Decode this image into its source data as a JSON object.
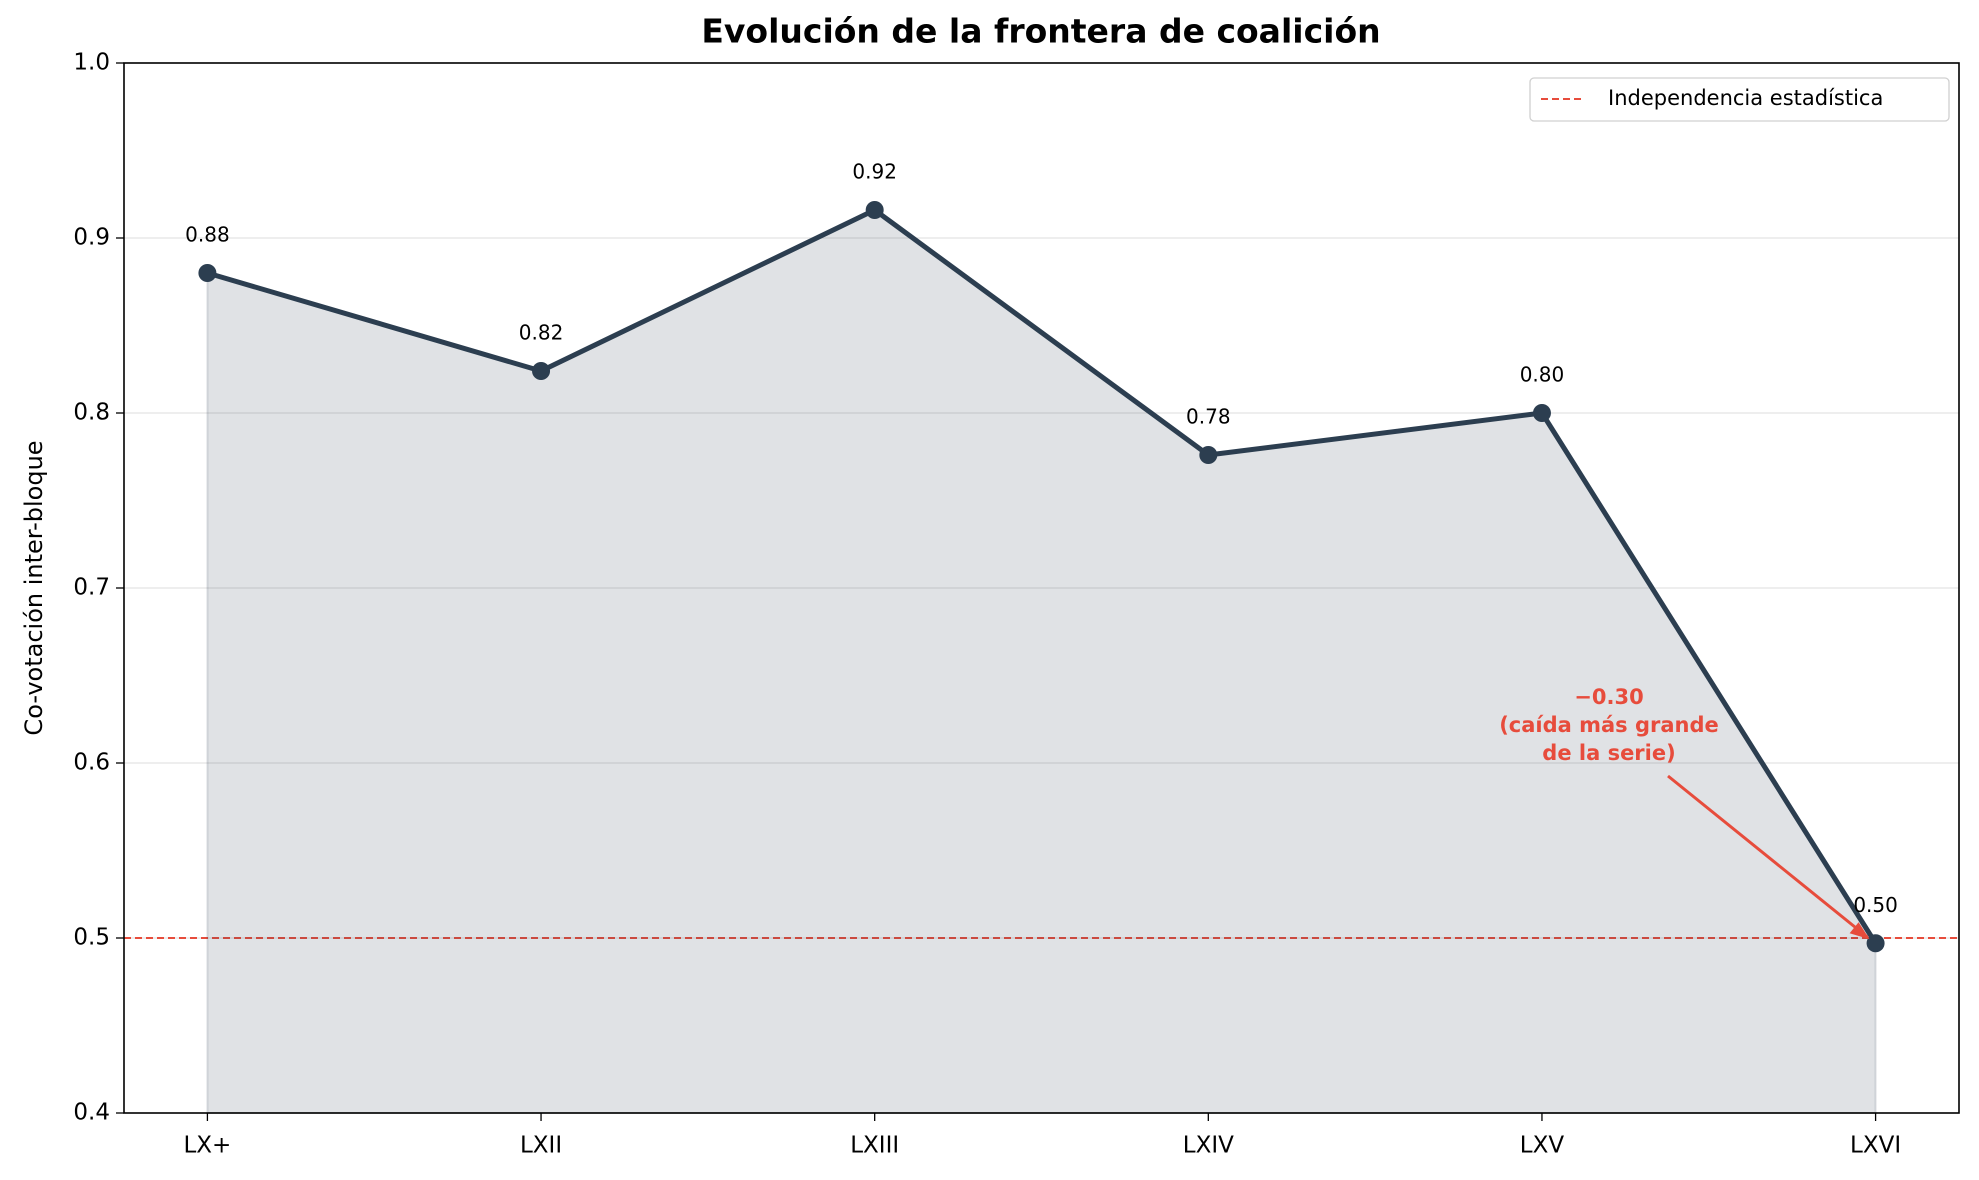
{
  "chart_data": {
    "type": "line",
    "title": "Evolución de la frontera de coalición",
    "y_label": "Co-votación inter-bloque",
    "categories": [
      "LX+",
      "LXII",
      "LXIII",
      "LXIV",
      "LXV",
      "LXVI"
    ],
    "series": [
      {
        "name": "Co-votación inter-bloque",
        "color": "#2c3e50",
        "values": [
          0.88,
          0.824,
          0.916,
          0.776,
          0.8,
          0.497
        ],
        "value_labels": [
          "0.88",
          "0.82",
          "0.92",
          "0.78",
          "0.80",
          "0.50"
        ]
      }
    ],
    "fill": true,
    "ylim": [
      0.4,
      1.0
    ],
    "yticks": [
      0.4,
      0.5,
      0.6,
      0.7,
      0.8,
      0.9,
      {
        "value": 1.0,
        "label": "1.0"
      }
    ],
    "grid": true,
    "reference_line": {
      "value": 0.5,
      "label": "Independencia estadística",
      "color": "#e74c3c"
    },
    "legend": "upper right",
    "annotation": {
      "lines": [
        "−0.30",
        "(caída más grande",
        "de la serie)"
      ],
      "color": "#e74c3c"
    }
  }
}
